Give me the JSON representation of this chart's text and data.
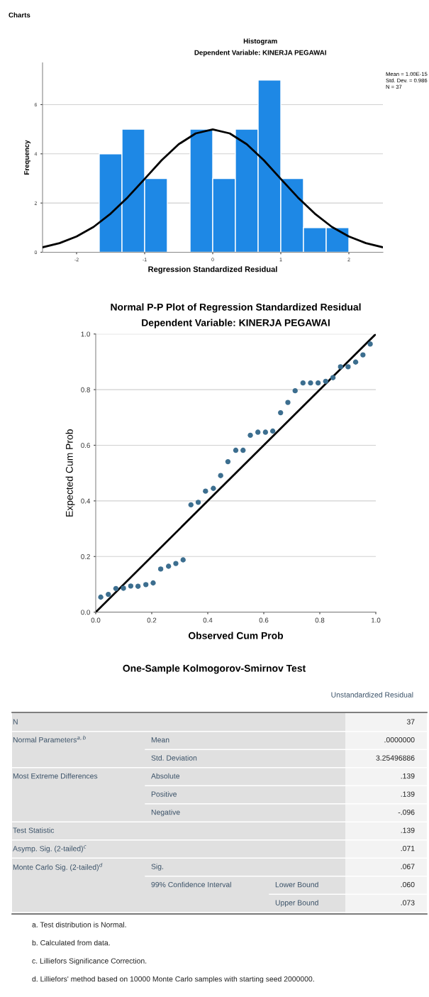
{
  "chart_data": [
    {
      "type": "histogram",
      "title": "Histogram",
      "subtitle": "Dependent Variable: KINERJA PEGAWAI",
      "xlabel": "Regression Standardized Residual",
      "ylabel": "Frequency",
      "annotations": [
        "Charts",
        "Mean = 1.00E-15",
        "Std. Dev. = 0.986",
        "N = 37"
      ],
      "bins": [
        -1.667,
        -1.333,
        -1.0,
        -0.667,
        -0.333,
        0.0,
        0.333,
        0.667,
        1.0,
        1.333,
        1.667,
        2.0
      ],
      "values": [
        4,
        5,
        3,
        0,
        5,
        3,
        5,
        7,
        3,
        1,
        1
      ],
      "color": "#1e88e5",
      "series": [
        {
          "type": "line",
          "color": "#000000",
          "x": [
            -2.5,
            -2.25,
            -2.0,
            -1.75,
            -1.5,
            -1.25,
            -1.0,
            -0.75,
            -0.5,
            -0.25,
            0.0,
            0.25,
            0.5,
            0.75,
            1.0,
            1.25,
            1.5,
            1.75,
            2.0,
            2.25,
            2.5
          ],
          "values": [
            0.2,
            0.37,
            0.64,
            1.03,
            1.57,
            2.23,
            2.98,
            3.74,
            4.39,
            4.83,
            4.99,
            4.83,
            4.39,
            3.74,
            2.98,
            2.23,
            1.57,
            1.03,
            0.64,
            0.37,
            0.2
          ]
        }
      ],
      "xlim": [
        -2.5,
        2.5
      ],
      "xticks": [
        -2,
        -1,
        0,
        1,
        2
      ],
      "ylim": [
        0,
        7.7
      ],
      "yticks": [
        0,
        2,
        4,
        6
      ],
      "grid": "y"
    },
    {
      "type": "scatter",
      "title": "Normal P-P Plot of Regression Standardized Residual",
      "subtitle": "Dependent Variable: KINERJA PEGAWAI",
      "xlabel": "Observed Cum Prob",
      "ylabel": "Expected Cum Prob",
      "series": [
        {
          "type": "scatter",
          "marker": "circle",
          "color": "#3c6e8f",
          "x": [
            0.018,
            0.045,
            0.072,
            0.099,
            0.125,
            0.151,
            0.179,
            0.205,
            0.232,
            0.26,
            0.286,
            0.312,
            0.34,
            0.366,
            0.392,
            0.42,
            0.446,
            0.472,
            0.5,
            0.526,
            0.552,
            0.579,
            0.606,
            0.632,
            0.66,
            0.686,
            0.712,
            0.74,
            0.767,
            0.794,
            0.821,
            0.847,
            0.874,
            0.901,
            0.928,
            0.954,
            0.98
          ],
          "values": [
            0.054,
            0.064,
            0.085,
            0.086,
            0.094,
            0.093,
            0.099,
            0.105,
            0.155,
            0.165,
            0.175,
            0.188,
            0.386,
            0.395,
            0.435,
            0.445,
            0.491,
            0.541,
            0.582,
            0.582,
            0.636,
            0.647,
            0.647,
            0.651,
            0.717,
            0.754,
            0.796,
            0.824,
            0.824,
            0.824,
            0.83,
            0.843,
            0.882,
            0.882,
            0.899,
            0.925,
            0.964
          ]
        },
        {
          "type": "line",
          "color": "#000000",
          "x": [
            0,
            1
          ],
          "values": [
            0,
            1
          ]
        }
      ],
      "xlim": [
        0,
        1
      ],
      "xticks": [
        {
          "value": 0,
          "label": "0.0"
        },
        0.2,
        0.4,
        0.6,
        0.8,
        {
          "value": 1,
          "label": "1.0"
        }
      ],
      "ylim": [
        0,
        1
      ],
      "yticks": [
        {
          "value": 0,
          "label": "0.0"
        },
        0.2,
        0.4,
        0.6,
        0.8,
        {
          "value": 1,
          "label": "1.0"
        }
      ],
      "grid": "y"
    },
    {
      "type": "other",
      "title": "One-Sample Kolmogorov-Smirnov Test",
      "annotations": [
        "Unstandardized Residual",
        "N",
        "37",
        "Normal Parameters$^{a,b}$",
        "Mean",
        ".0000000",
        "Std. Deviation",
        "3.25496886",
        "Most Extreme Differences",
        "Absolute",
        ".139",
        "Positive",
        ".139",
        "Negative",
        "-.096",
        "Test Statistic",
        ".139",
        "Asymp. Sig. (2-tailed)$^{c}$",
        ".071",
        "Monte Carlo Sig. (2-tailed)$^{d}$",
        "Sig.",
        ".067",
        "99% Confidence Interval",
        "Lower Bound",
        ".060",
        "Upper Bound",
        ".073",
        "a. Test distribution is Normal.",
        "b. Calculated from data.",
        "c. Lilliefors Significance Correction.",
        "d. Lilliefors' method based on 10000 Monte Carlo samples with starting seed 2000000."
      ]
    }
  ]
}
